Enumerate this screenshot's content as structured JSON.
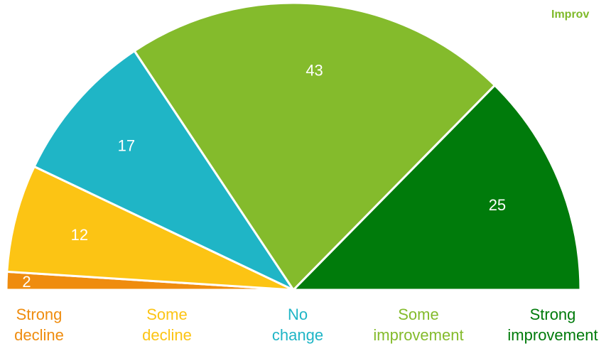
{
  "partial_heading": "Improv",
  "colors": {
    "heading": "#7fba2a"
  },
  "chart_data": {
    "type": "pie",
    "subtype": "half-donut (semicircle pie)",
    "categories": [
      "Strong decline",
      "Some decline",
      "No change",
      "Some improvement",
      "Strong improvement"
    ],
    "category_label_lines": [
      [
        "Strong",
        "decline"
      ],
      [
        "Some",
        "decline"
      ],
      [
        "No",
        "change"
      ],
      [
        "Some",
        "improvement"
      ],
      [
        "Strong",
        "improvement"
      ]
    ],
    "values": [
      2,
      12,
      17,
      43,
      25
    ],
    "colors": [
      "#ef8c0e",
      "#fcc414",
      "#1fb5c6",
      "#84bb2c",
      "#007b0b"
    ],
    "value_label_color": "#ffffff",
    "legend": "below"
  }
}
